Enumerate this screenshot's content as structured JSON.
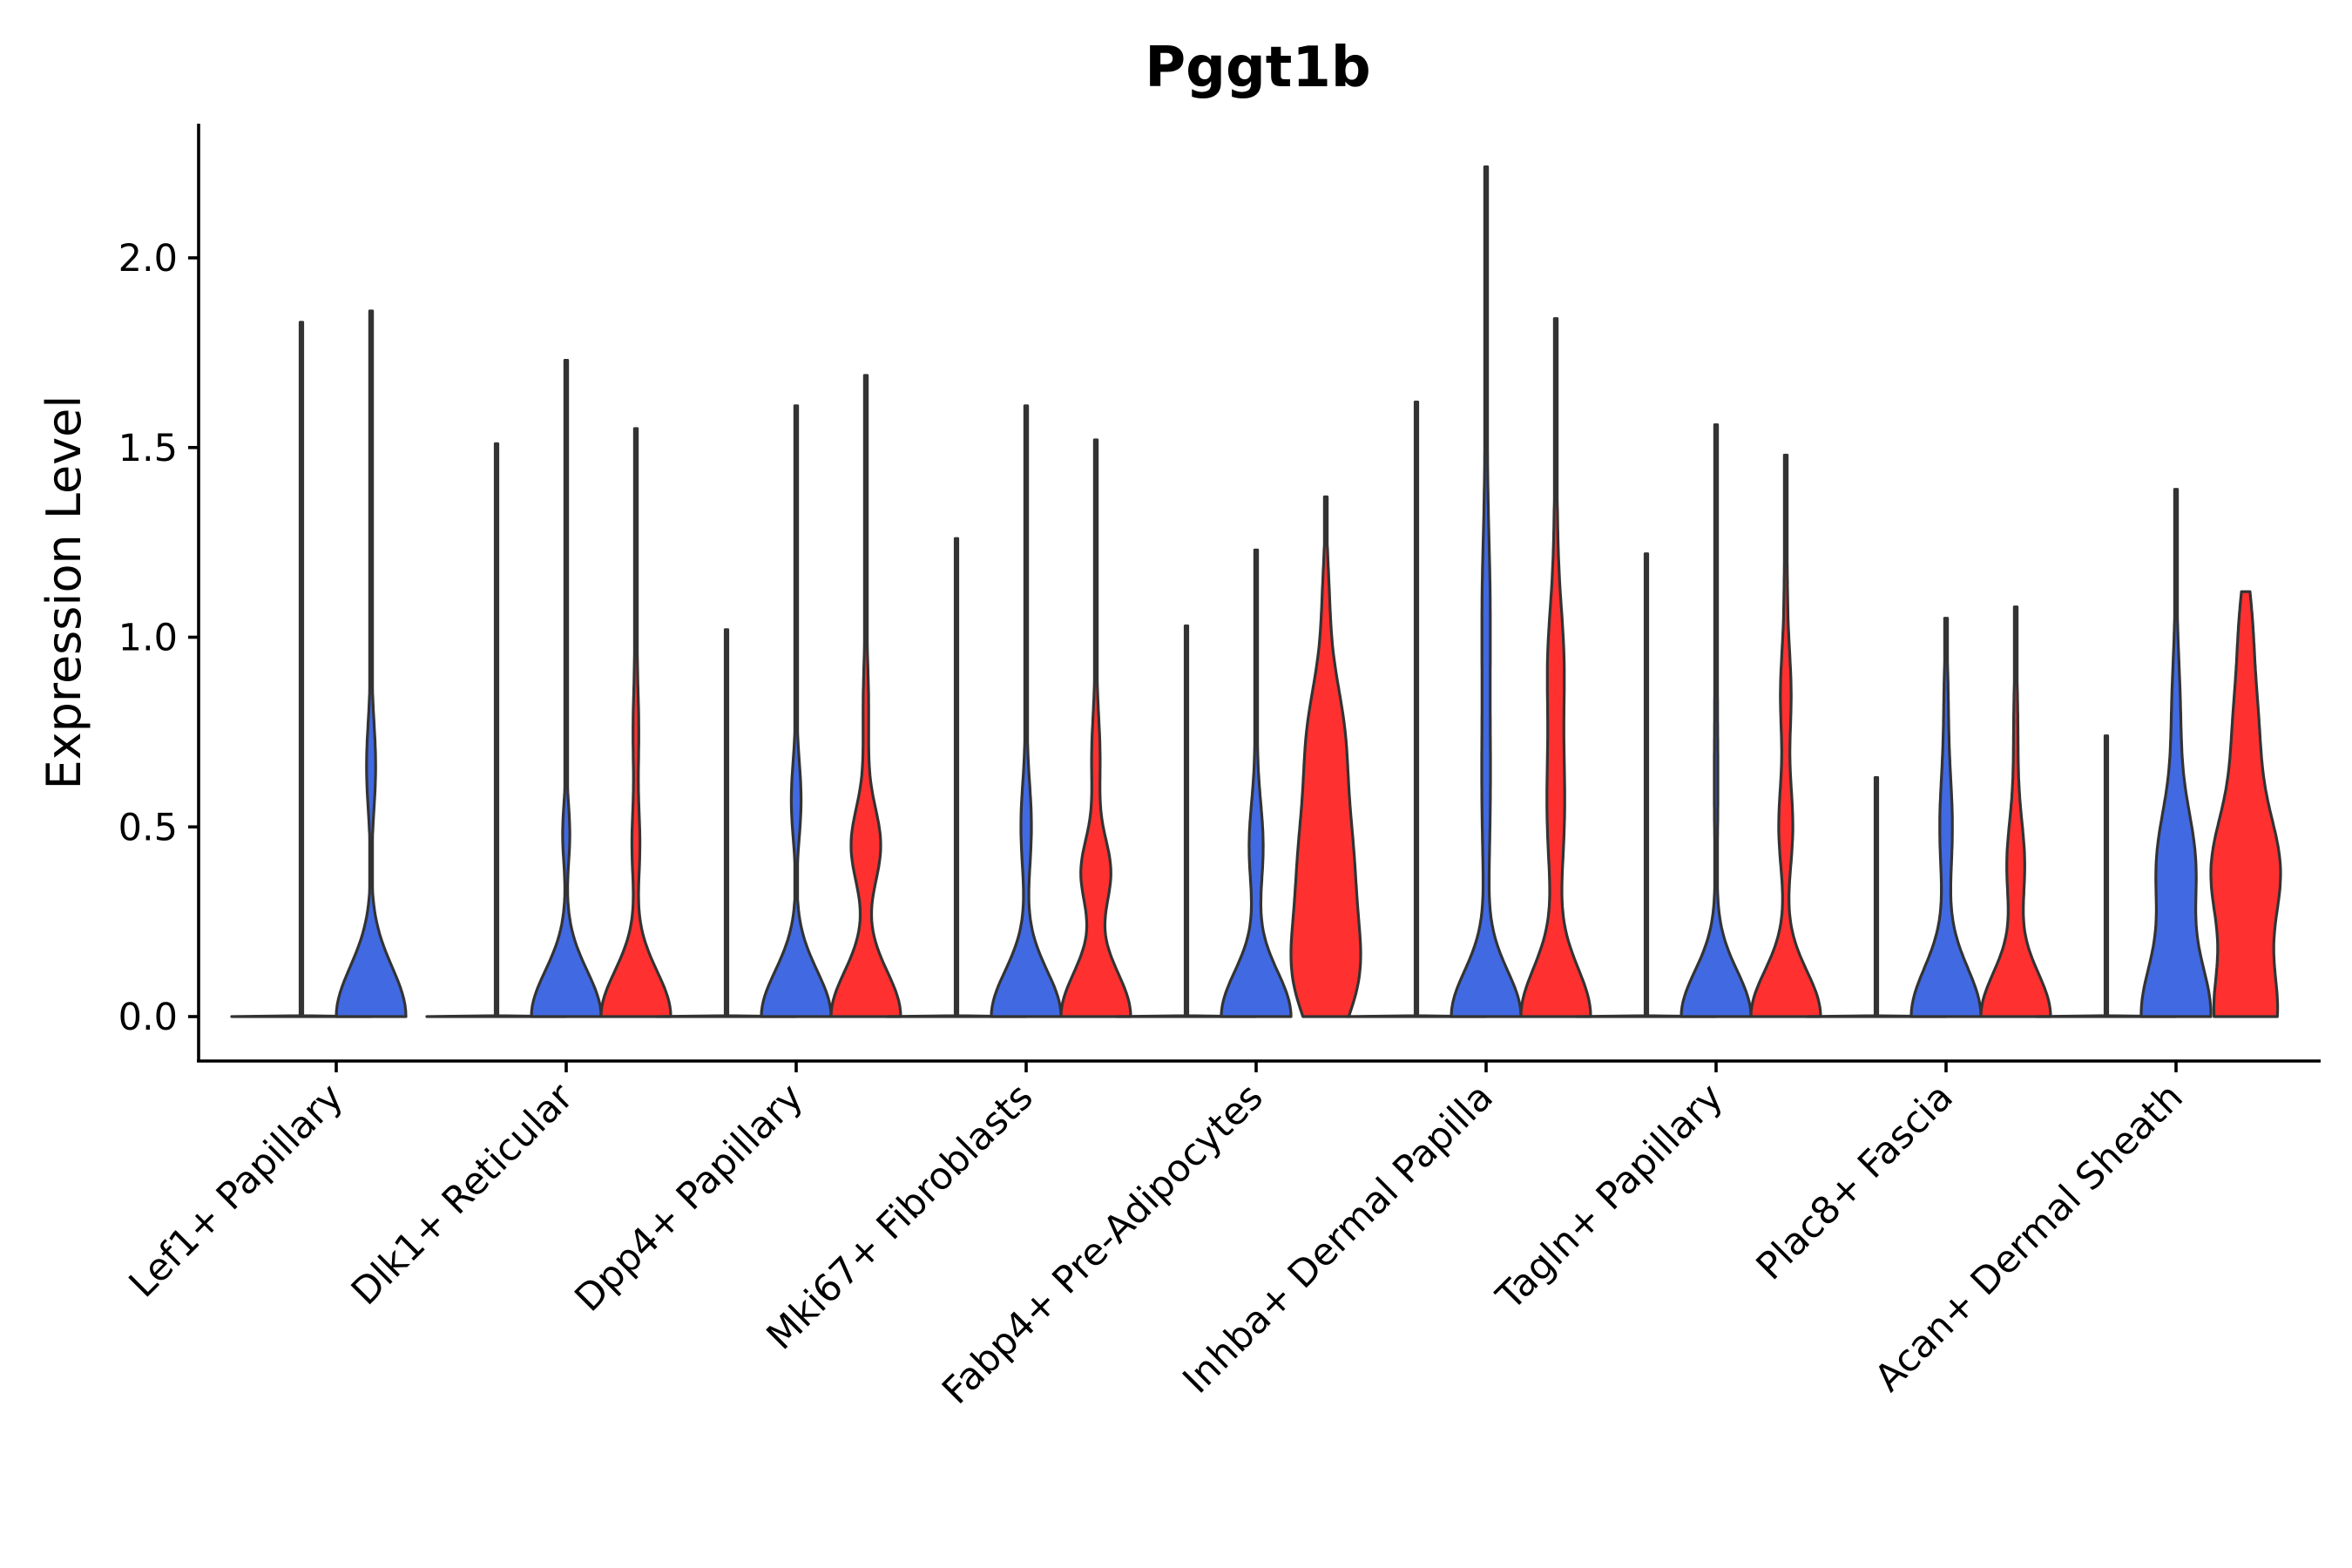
{
  "chart_data": {
    "type": "violin",
    "title": "Pggt1b",
    "xlabel": "",
    "ylabel": "Expression Level",
    "ylim": [
      -0.11,
      2.36
    ],
    "yticks": [
      0.0,
      0.5,
      1.0,
      1.5,
      2.0
    ],
    "ytick_labels": [
      "0.0",
      "0.5",
      "1.0",
      "1.5",
      "2.0"
    ],
    "categories": [
      "Lef1+ Papillary",
      "Dlk1+ Reticular",
      "Dpp4+ Papillary",
      "Mki67+ Fibroblasts",
      "Fabp4+ Pre-Adipocytes",
      "Inhba+ Dermal Papilla",
      "Tagln+ Papillary",
      "Plac8+ Fascia",
      "Acan+ Dermal Sheath"
    ],
    "series_colors": [
      "#f8f8f8",
      "#4169e1",
      "#ff3030"
    ],
    "groups": [
      {
        "category": "Lef1+ Papillary",
        "violins": [
          {
            "color": "#f8f8f8",
            "max": 1.83,
            "modes": []
          },
          {
            "color": "#4169e1",
            "max": 1.86,
            "modes": [
              [
                0.0,
                1.0,
                0.13
              ],
              [
                0.66,
                0.13,
                0.12
              ],
              [
                1.1,
                0.03,
                0.14
              ]
            ]
          }
        ]
      },
      {
        "category": "Dlk1+ Reticular",
        "violins": [
          {
            "color": "#f8f8f8",
            "max": 1.51,
            "modes": []
          },
          {
            "color": "#4169e1",
            "max": 1.73,
            "modes": [
              [
                0.0,
                1.0,
                0.12
              ],
              [
                0.48,
                0.1,
                0.08
              ],
              [
                0.8,
                0.02,
                0.15
              ]
            ]
          },
          {
            "color": "#ff3030",
            "max": 1.55,
            "modes": [
              [
                0.0,
                1.0,
                0.12
              ],
              [
                0.45,
                0.11,
                0.1
              ],
              [
                0.75,
                0.08,
                0.12
              ],
              [
                1.05,
                0.03,
                0.12
              ]
            ]
          }
        ]
      },
      {
        "category": "Dpp4+ Papillary",
        "violins": [
          {
            "color": "#f8f8f8",
            "max": 1.02,
            "modes": []
          },
          {
            "color": "#4169e1",
            "max": 1.61,
            "modes": [
              [
                0.0,
                1.0,
                0.12
              ],
              [
                0.57,
                0.14,
                0.1
              ],
              [
                0.9,
                0.03,
                0.12
              ]
            ]
          },
          {
            "color": "#ff3030",
            "max": 1.69,
            "modes": [
              [
                0.0,
                1.0,
                0.12
              ],
              [
                0.45,
                0.42,
                0.1
              ],
              [
                0.8,
                0.08,
                0.15
              ]
            ]
          }
        ]
      },
      {
        "category": "Mki67+ Fibroblasts",
        "violins": [
          {
            "color": "#f8f8f8",
            "max": 1.26,
            "modes": []
          },
          {
            "color": "#4169e1",
            "max": 1.61,
            "modes": [
              [
                0.0,
                1.0,
                0.12
              ],
              [
                0.5,
                0.15,
                0.12
              ],
              [
                0.9,
                0.03,
                0.14
              ]
            ]
          },
          {
            "color": "#ff3030",
            "max": 1.52,
            "modes": [
              [
                0.0,
                1.0,
                0.12
              ],
              [
                0.38,
                0.42,
                0.09
              ],
              [
                0.68,
                0.12,
                0.12
              ],
              [
                1.05,
                0.03,
                0.12
              ]
            ]
          }
        ]
      },
      {
        "category": "Fabp4+ Pre-Adipocytes",
        "violins": [
          {
            "color": "#f8f8f8",
            "max": 1.03,
            "modes": []
          },
          {
            "color": "#4169e1",
            "max": 1.23,
            "modes": [
              [
                0.0,
                1.0,
                0.12
              ],
              [
                0.45,
                0.2,
                0.12
              ],
              [
                0.8,
                0.03,
                0.12
              ]
            ]
          },
          {
            "color": "#ff3030",
            "max": 1.37,
            "modes": [
              [
                0.1,
                0.95,
                0.14
              ],
              [
                0.4,
                0.9,
                0.18
              ],
              [
                0.75,
                0.55,
                0.15
              ],
              [
                1.1,
                0.1,
                0.12
              ]
            ]
          }
        ]
      },
      {
        "category": "Inhba+ Dermal Papilla",
        "violins": [
          {
            "color": "#f8f8f8",
            "max": 1.62,
            "modes": []
          },
          {
            "color": "#4169e1",
            "max": 2.24,
            "modes": [
              [
                0.0,
                1.0,
                0.12
              ],
              [
                0.6,
                0.12,
                0.25
              ],
              [
                1.1,
                0.1,
                0.2
              ],
              [
                1.6,
                0.03,
                0.2
              ]
            ]
          },
          {
            "color": "#ff3030",
            "max": 1.84,
            "modes": [
              [
                0.0,
                1.0,
                0.13
              ],
              [
                0.55,
                0.25,
                0.2
              ],
              [
                0.95,
                0.2,
                0.15
              ],
              [
                1.3,
                0.04,
                0.15
              ]
            ]
          }
        ]
      },
      {
        "category": "Tagln+ Papillary",
        "violins": [
          {
            "color": "#f8f8f8",
            "max": 1.22,
            "modes": []
          },
          {
            "color": "#4169e1",
            "max": 1.56,
            "modes": [
              [
                0.0,
                1.0,
                0.12
              ],
              [
                0.6,
                0.05,
                0.2
              ],
              [
                1.0,
                0.03,
                0.15
              ]
            ]
          },
          {
            "color": "#ff3030",
            "max": 1.48,
            "modes": [
              [
                0.0,
                1.0,
                0.12
              ],
              [
                0.5,
                0.2,
                0.12
              ],
              [
                0.85,
                0.15,
                0.12
              ],
              [
                1.15,
                0.04,
                0.12
              ]
            ]
          }
        ]
      },
      {
        "category": "Plac8+ Fascia",
        "violins": [
          {
            "color": "#f8f8f8",
            "max": 0.63,
            "modes": []
          },
          {
            "color": "#4169e1",
            "max": 1.05,
            "modes": [
              [
                0.0,
                1.0,
                0.13
              ],
              [
                0.5,
                0.18,
                0.15
              ],
              [
                0.85,
                0.05,
                0.12
              ]
            ]
          },
          {
            "color": "#ff3030",
            "max": 1.08,
            "modes": [
              [
                0.0,
                1.0,
                0.12
              ],
              [
                0.4,
                0.25,
                0.12
              ],
              [
                0.75,
                0.06,
                0.15
              ]
            ]
          }
        ]
      },
      {
        "category": "Acan+ Dermal Sheath",
        "violins": [
          {
            "color": "#f8f8f8",
            "max": 0.74,
            "modes": []
          },
          {
            "color": "#4169e1",
            "max": 1.39,
            "modes": [
              [
                0.0,
                1.0,
                0.15
              ],
              [
                0.4,
                0.55,
                0.15
              ],
              [
                0.8,
                0.12,
                0.15
              ],
              [
                1.2,
                0.02,
                0.15
              ]
            ]
          },
          {
            "color": "#ff3030",
            "max": 1.12,
            "modes": [
              [
                0.0,
                0.85,
                0.15
              ],
              [
                0.38,
                0.9,
                0.15
              ],
              [
                0.75,
                0.35,
                0.18
              ],
              [
                1.05,
                0.1,
                0.1
              ]
            ]
          }
        ]
      }
    ]
  }
}
